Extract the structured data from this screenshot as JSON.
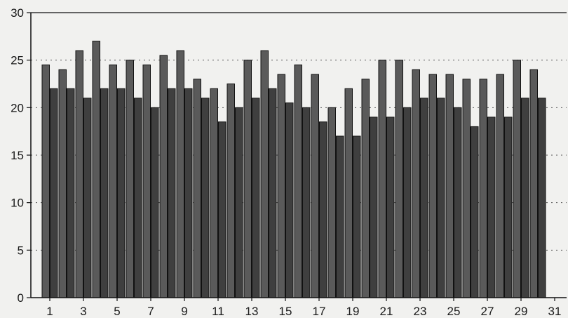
{
  "chart_data": {
    "type": "bar",
    "title": "",
    "xlabel": "",
    "ylabel": "",
    "ylim": [
      0,
      30
    ],
    "xlim": [
      0,
      31
    ],
    "yticks": [
      0,
      5,
      10,
      15,
      20,
      25,
      30
    ],
    "xticks": [
      1,
      3,
      5,
      7,
      9,
      11,
      13,
      15,
      17,
      19,
      21,
      23,
      25,
      27,
      29,
      31
    ],
    "grid": "dotted horizontal",
    "categories": [
      1,
      2,
      3,
      4,
      5,
      6,
      7,
      8,
      9,
      10,
      11,
      12,
      13,
      14,
      15,
      16,
      17,
      18,
      19,
      20,
      21,
      22,
      23,
      24,
      25,
      26,
      27,
      28,
      29,
      30
    ],
    "series": [
      {
        "color": "#5a5a5a",
        "values": [
          24.5,
          24,
          26,
          27,
          24.5,
          25,
          24.5,
          25.5,
          26,
          23,
          22,
          22.5,
          25,
          26,
          23.5,
          24.5,
          23.5,
          20,
          22,
          23,
          25,
          25,
          24,
          23.5,
          23.5,
          23,
          23,
          23.5,
          25,
          24
        ]
      },
      {
        "color": "#3f3f3f",
        "values": [
          22,
          22,
          21,
          22,
          22,
          21,
          20,
          22,
          22,
          21,
          18.5,
          20,
          21,
          22,
          20.5,
          20,
          18.5,
          17,
          17,
          19,
          19,
          20,
          21,
          21,
          20,
          18,
          19,
          19,
          21,
          21
        ]
      }
    ]
  }
}
